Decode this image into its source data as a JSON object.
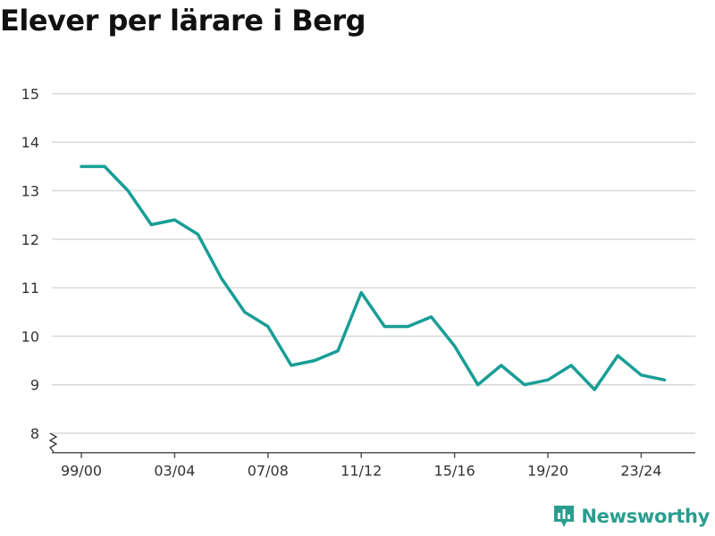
{
  "title": "Elever per lärare i Berg",
  "brand": {
    "name": "Newsworthy",
    "icon": "newsworthy-logo-icon",
    "color": "#2a9d8f"
  },
  "chart_data": {
    "type": "line",
    "title": "Elever per lärare i Berg",
    "xlabel": "",
    "ylabel": "",
    "categories": [
      "99/00",
      "00/01",
      "01/02",
      "02/03",
      "03/04",
      "04/05",
      "05/06",
      "06/07",
      "07/08",
      "08/09",
      "09/10",
      "10/11",
      "11/12",
      "12/13",
      "13/14",
      "14/15",
      "15/16",
      "16/17",
      "17/18",
      "18/19",
      "19/20",
      "20/21",
      "21/22",
      "22/23",
      "23/24",
      "24/25"
    ],
    "x_tick_labels": [
      "99/00",
      "03/04",
      "07/08",
      "11/12",
      "15/16",
      "19/20",
      "23/24"
    ],
    "y_tick_labels": [
      "8",
      "9",
      "10",
      "11",
      "12",
      "13",
      "14",
      "15"
    ],
    "series": [
      {
        "values": [
          13.5,
          13.5,
          13.0,
          12.3,
          12.4,
          12.1,
          11.2,
          10.5,
          10.2,
          9.4,
          9.5,
          9.7,
          10.9,
          10.2,
          10.2,
          10.4,
          9.8,
          9.0,
          9.4,
          9.0,
          9.1,
          9.4,
          8.9,
          9.6,
          9.2,
          9.1
        ]
      }
    ],
    "ylim": [
      7.6,
      15.3
    ],
    "grid": true,
    "y_axis_break": true,
    "line_color": "#189e96",
    "grid_color": "#d9d9d9"
  }
}
